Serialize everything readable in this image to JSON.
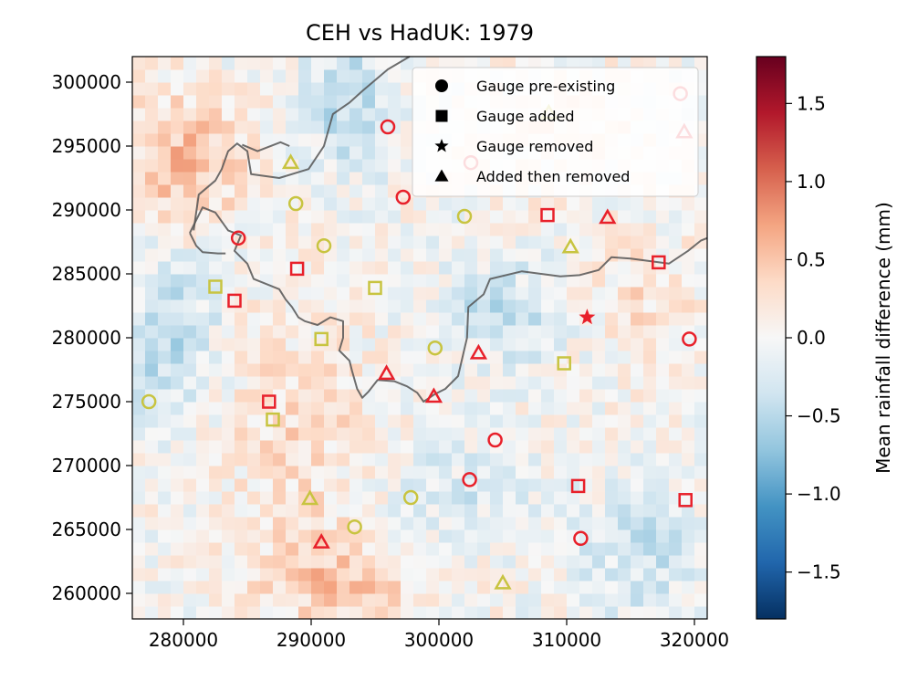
{
  "chart_data": {
    "type": "heatmap",
    "title": "CEH vs HadUK: 1979",
    "xlabel": "",
    "ylabel": "",
    "xlim": [
      276000,
      321000
    ],
    "ylim": [
      258000,
      302000
    ],
    "x_ticks": [
      280000,
      290000,
      300000,
      310000,
      320000
    ],
    "y_ticks": [
      260000,
      265000,
      270000,
      275000,
      280000,
      285000,
      290000,
      295000,
      300000
    ],
    "x_tick_labels": [
      "280000",
      "290000",
      "300000",
      "310000",
      "320000"
    ],
    "y_tick_labels": [
      "260000",
      "265000",
      "270000",
      "275000",
      "280000",
      "285000",
      "290000",
      "295000",
      "300000"
    ],
    "colorbar": {
      "label": "Mean rainfall difference (mm)",
      "colormap": "RdBu_r",
      "range": [
        -1.8,
        1.8
      ],
      "ticks": [
        -1.5,
        -1.0,
        -0.5,
        0.0,
        0.5,
        1.0,
        1.5
      ],
      "tick_labels": [
        "−1.5",
        "−1.0",
        "−0.5",
        "0.0",
        "0.5",
        "1.0",
        "1.5"
      ]
    },
    "legend": {
      "placement": "upper right",
      "entries": [
        {
          "label": "Gauge pre-existing",
          "marker": "circle"
        },
        {
          "label": "Gauge added",
          "marker": "square"
        },
        {
          "label": "Gauge removed",
          "marker": "star"
        },
        {
          "label": "Added then removed",
          "marker": "triangle"
        }
      ]
    },
    "marker_colors": {
      "red": "#e8202a",
      "yellow": "#c8c440"
    },
    "markers": [
      {
        "shape": "circle",
        "color": "red",
        "x": 296000,
        "y": 296500
      },
      {
        "shape": "circle",
        "color": "red",
        "x": 302500,
        "y": 293700
      },
      {
        "shape": "circle",
        "color": "red",
        "x": 297200,
        "y": 291000
      },
      {
        "shape": "circle",
        "color": "red",
        "x": 284300,
        "y": 287800
      },
      {
        "shape": "circle",
        "color": "red",
        "x": 304400,
        "y": 272000
      },
      {
        "shape": "circle",
        "color": "red",
        "x": 302400,
        "y": 268900
      },
      {
        "shape": "circle",
        "color": "red",
        "x": 311100,
        "y": 264300
      },
      {
        "shape": "circle",
        "color": "red",
        "x": 319600,
        "y": 279900
      },
      {
        "shape": "circle",
        "color": "red",
        "x": 318900,
        "y": 299100
      },
      {
        "shape": "circle",
        "color": "yellow",
        "x": 288800,
        "y": 290500
      },
      {
        "shape": "circle",
        "color": "yellow",
        "x": 302000,
        "y": 289500
      },
      {
        "shape": "circle",
        "color": "yellow",
        "x": 291000,
        "y": 287200
      },
      {
        "shape": "circle",
        "color": "yellow",
        "x": 299700,
        "y": 279200
      },
      {
        "shape": "circle",
        "color": "yellow",
        "x": 277300,
        "y": 275000
      },
      {
        "shape": "circle",
        "color": "yellow",
        "x": 297800,
        "y": 267500
      },
      {
        "shape": "circle",
        "color": "yellow",
        "x": 293400,
        "y": 265200
      },
      {
        "shape": "square",
        "color": "red",
        "x": 308500,
        "y": 289600
      },
      {
        "shape": "square",
        "color": "red",
        "x": 288900,
        "y": 285400
      },
      {
        "shape": "square",
        "color": "red",
        "x": 317200,
        "y": 285900
      },
      {
        "shape": "square",
        "color": "red",
        "x": 284000,
        "y": 282900
      },
      {
        "shape": "square",
        "color": "red",
        "x": 286700,
        "y": 275000
      },
      {
        "shape": "square",
        "color": "red",
        "x": 310900,
        "y": 268400
      },
      {
        "shape": "square",
        "color": "red",
        "x": 319300,
        "y": 267300
      },
      {
        "shape": "square",
        "color": "yellow",
        "x": 282500,
        "y": 284000
      },
      {
        "shape": "square",
        "color": "yellow",
        "x": 295000,
        "y": 283900
      },
      {
        "shape": "square",
        "color": "yellow",
        "x": 290800,
        "y": 279900
      },
      {
        "shape": "square",
        "color": "yellow",
        "x": 309800,
        "y": 278000
      },
      {
        "shape": "square",
        "color": "yellow",
        "x": 287000,
        "y": 273600
      },
      {
        "shape": "star",
        "color": "red",
        "x": 311600,
        "y": 281600
      },
      {
        "shape": "triangle",
        "color": "red",
        "x": 313200,
        "y": 289400
      },
      {
        "shape": "triangle",
        "color": "red",
        "x": 303100,
        "y": 278800
      },
      {
        "shape": "triangle",
        "color": "red",
        "x": 295900,
        "y": 277200
      },
      {
        "shape": "triangle",
        "color": "red",
        "x": 299600,
        "y": 275400
      },
      {
        "shape": "triangle",
        "color": "red",
        "x": 290800,
        "y": 264000
      },
      {
        "shape": "triangle",
        "color": "red",
        "x": 319200,
        "y": 296100
      },
      {
        "shape": "triangle",
        "color": "yellow",
        "x": 288400,
        "y": 293700
      },
      {
        "shape": "triangle",
        "color": "yellow",
        "x": 308600,
        "y": 297600
      },
      {
        "shape": "triangle",
        "color": "yellow",
        "x": 310300,
        "y": 287100
      },
      {
        "shape": "triangle",
        "color": "yellow",
        "x": 289900,
        "y": 267400
      },
      {
        "shape": "triangle",
        "color": "yellow",
        "x": 305000,
        "y": 260800
      }
    ],
    "boundaries": [
      [
        [
          280500,
          288200
        ],
        [
          281500,
          290200
        ],
        [
          282500,
          289800
        ],
        [
          283500,
          288400
        ],
        [
          284500,
          288000
        ],
        [
          284000,
          286800
        ],
        [
          285000,
          285800
        ],
        [
          285500,
          284600
        ],
        [
          286500,
          284200
        ],
        [
          287500,
          283800
        ],
        [
          288000,
          283000
        ],
        [
          288500,
          282400
        ],
        [
          289000,
          281600
        ],
        [
          289500,
          281300
        ],
        [
          290500,
          281000
        ],
        [
          291500,
          281600
        ],
        [
          292500,
          281300
        ],
        [
          292500,
          280000
        ],
        [
          292200,
          279000
        ],
        [
          293000,
          278200
        ],
        [
          293200,
          277400
        ],
        [
          293600,
          276000
        ],
        [
          294000,
          275300
        ],
        [
          294500,
          275800
        ],
        [
          295200,
          276700
        ],
        [
          296500,
          276600
        ],
        [
          297500,
          276200
        ],
        [
          298300,
          275700
        ],
        [
          298800,
          275000
        ],
        [
          299700,
          275600
        ],
        [
          300500,
          276000
        ],
        [
          301500,
          277000
        ],
        [
          302200,
          280000
        ],
        [
          302300,
          282400
        ],
        [
          303500,
          283400
        ],
        [
          304000,
          284600
        ],
        [
          306500,
          285200
        ],
        [
          308000,
          285000
        ],
        [
          309500,
          284800
        ],
        [
          311000,
          284900
        ],
        [
          312500,
          285300
        ],
        [
          313500,
          286300
        ],
        [
          315000,
          286200
        ],
        [
          316500,
          286000
        ],
        [
          318000,
          285800
        ],
        [
          319500,
          286800
        ],
        [
          320500,
          287600
        ],
        [
          321000,
          287800
        ]
      ],
      [
        [
          280500,
          288200
        ],
        [
          281000,
          287200
        ],
        [
          281500,
          286700
        ],
        [
          282700,
          286600
        ],
        [
          283300,
          286600
        ]
      ],
      [
        [
          280800,
          288400
        ],
        [
          281200,
          291200
        ],
        [
          282500,
          292300
        ],
        [
          283000,
          293200
        ],
        [
          283500,
          294600
        ],
        [
          284200,
          295200
        ],
        [
          285000,
          294600
        ],
        [
          285300,
          292800
        ],
        [
          287500,
          292500
        ],
        [
          289800,
          293200
        ],
        [
          291000,
          295000
        ],
        [
          291700,
          297500
        ],
        [
          293000,
          298400
        ],
        [
          294000,
          299300
        ],
        [
          296000,
          301000
        ],
        [
          297700,
          302000
        ]
      ],
      [
        [
          284600,
          295100
        ],
        [
          285800,
          294600
        ],
        [
          287600,
          295300
        ],
        [
          288300,
          295000
        ]
      ]
    ]
  }
}
